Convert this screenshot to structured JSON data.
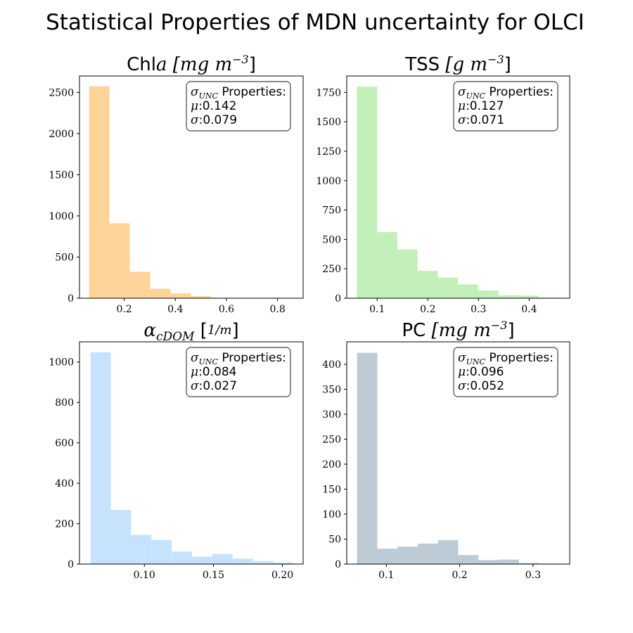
{
  "figure": {
    "title": "Statistical Properties of MDN uncertainty for OLCI",
    "stats_heading": "Properties:",
    "sigma_unc_symbol": "σ",
    "sigma_unc_sub": "UNC",
    "mu_symbol": "μ",
    "sigma_symbol": "σ"
  },
  "chart_data": [
    {
      "type": "bar",
      "title_main": "Chl",
      "title_var": "a",
      "title_unit": "[mg m",
      "title_exp": "−3",
      "title_close": "]",
      "color": "#fed49b",
      "bin_edges": [
        0.063,
        0.1425,
        0.222,
        0.3015,
        0.381,
        0.4605,
        0.54,
        0.6195,
        0.699,
        0.7785,
        0.858
      ],
      "values": [
        2575,
        910,
        320,
        115,
        60,
        25,
        6,
        3,
        2,
        1
      ],
      "xlim": [
        0.025,
        0.9
      ],
      "ylim": [
        0,
        2700
      ],
      "xticks": [
        0.2,
        0.4,
        0.6,
        0.8
      ],
      "xtick_labels": [
        "0.2",
        "0.4",
        "0.6",
        "0.8"
      ],
      "yticks": [
        0,
        500,
        1000,
        1500,
        2000,
        2500
      ],
      "ytick_labels": [
        "0",
        "500",
        "1000",
        "1500",
        "2000",
        "2500"
      ],
      "mu": "0.142",
      "sigma": "0.079"
    },
    {
      "type": "bar",
      "title_main": "TSS",
      "title_var": "",
      "title_unit": "[g m",
      "title_exp": "−3",
      "title_close": "]",
      "color": "#c2f0b8",
      "bin_edges": [
        0.06,
        0.0999,
        0.1398,
        0.1797,
        0.2196,
        0.2595,
        0.2994,
        0.3393,
        0.3792,
        0.4191,
        0.459
      ],
      "values": [
        1800,
        562,
        415,
        232,
        175,
        117,
        65,
        25,
        22,
        5
      ],
      "xlim": [
        0.04,
        0.48
      ],
      "ylim": [
        0,
        1890
      ],
      "xticks": [
        0.1,
        0.2,
        0.3,
        0.4
      ],
      "xtick_labels": [
        "0.1",
        "0.2",
        "0.3",
        "0.4"
      ],
      "yticks": [
        0,
        250,
        500,
        750,
        1000,
        1250,
        1500,
        1750
      ],
      "ytick_labels": [
        "0",
        "250",
        "500",
        "750",
        "1000",
        "1250",
        "1500",
        "1750"
      ],
      "mu": "0.127",
      "sigma": "0.071"
    },
    {
      "type": "bar",
      "title_main": "",
      "title_var": "α",
      "title_sub": "cDOM",
      "title_unit": "[",
      "title_frac_num": "1",
      "title_frac_den": "m",
      "title_close": "]",
      "color": "#c7e2fc",
      "bin_edges": [
        0.061,
        0.0757,
        0.0904,
        0.1051,
        0.1198,
        0.1345,
        0.1492,
        0.1639,
        0.1786,
        0.1933,
        0.208
      ],
      "values": [
        1048,
        268,
        145,
        120,
        62,
        37,
        50,
        27,
        15,
        8
      ],
      "xlim": [
        0.053,
        0.215
      ],
      "ylim": [
        0,
        1100
      ],
      "xticks": [
        0.1,
        0.15,
        0.2
      ],
      "xtick_labels": [
        "0.10",
        "0.15",
        "0.20"
      ],
      "yticks": [
        0,
        200,
        400,
        600,
        800,
        1000
      ],
      "ytick_labels": [
        "0",
        "200",
        "400",
        "600",
        "800",
        "1000"
      ],
      "mu": "0.084",
      "sigma": "0.027"
    },
    {
      "type": "bar",
      "title_main": "PC",
      "title_var": "",
      "title_unit": "[mg m",
      "title_exp": "−3",
      "title_close": "]",
      "color": "#bccbd6",
      "bin_edges": [
        0.06,
        0.0876,
        0.1152,
        0.1428,
        0.1704,
        0.198,
        0.2256,
        0.2532,
        0.2808,
        0.3084,
        0.336
      ],
      "values": [
        423,
        31,
        35,
        41,
        48,
        18,
        8,
        9,
        2,
        1
      ],
      "xlim": [
        0.046,
        0.35
      ],
      "ylim": [
        0,
        445
      ],
      "xticks": [
        0.1,
        0.2,
        0.3
      ],
      "xtick_labels": [
        "0.1",
        "0.2",
        "0.3"
      ],
      "yticks": [
        0,
        50,
        100,
        150,
        200,
        250,
        300,
        350,
        400
      ],
      "ytick_labels": [
        "0",
        "50",
        "100",
        "150",
        "200",
        "250",
        "300",
        "350",
        "400"
      ],
      "mu": "0.096",
      "sigma": "0.052"
    }
  ]
}
